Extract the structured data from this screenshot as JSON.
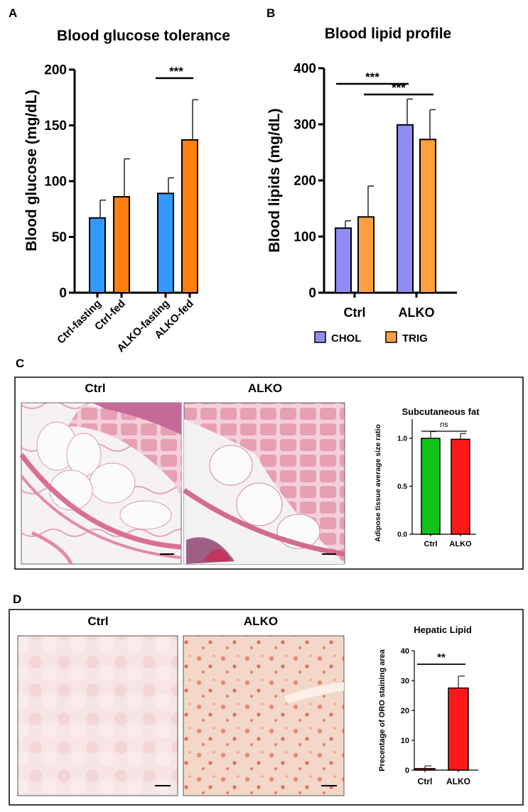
{
  "panels": {
    "A": {
      "letter": "A",
      "chart_data": {
        "type": "bar",
        "title": "Blood glucose tolerance",
        "ylabel": "Blood glucose (mg/dL)",
        "xlabel": "",
        "ylim": [
          0,
          200
        ],
        "yticks": [
          "0",
          "50",
          "100",
          "150",
          "200"
        ],
        "categories": [
          "Ctrl-fasting",
          "Ctrl-fed",
          "ALKO-fasting",
          "ALKO-fed"
        ],
        "values": [
          67,
          86,
          89,
          137
        ],
        "errors": [
          16,
          34,
          14,
          36
        ],
        "bar_colors": [
          "#3399ff",
          "#ff7f0e",
          "#3399ff",
          "#ff7f0e"
        ],
        "significance": [
          {
            "label": "***",
            "from": 2,
            "to": 3
          }
        ]
      }
    },
    "B": {
      "letter": "B",
      "chart_data": {
        "type": "bar",
        "title": "Blood lipid profile",
        "ylabel": "Blood lipids (mg/dL)",
        "xlabel": "",
        "ylim": [
          0,
          400
        ],
        "yticks": [
          "0",
          "100",
          "200",
          "300",
          "400"
        ],
        "categories": [
          "Ctrl",
          "ALKO"
        ],
        "series": [
          {
            "name": "CHOL",
            "color": "#8f8cf6",
            "values": [
              115,
              299
            ],
            "errors": [
              13,
              46
            ]
          },
          {
            "name": "TRIG",
            "color": "#ffa040",
            "values": [
              135,
              273
            ],
            "errors": [
              55,
              53
            ]
          }
        ],
        "legend": "bottom",
        "significance": [
          {
            "label": "***"
          },
          {
            "label": "***"
          }
        ]
      }
    },
    "C": {
      "letter": "C",
      "image_labels": [
        "Ctrl",
        "ALKO"
      ],
      "chart_data": {
        "type": "bar",
        "title": "Subcutaneous fat",
        "ylabel": "Adipose tissue average size ratio",
        "xlabel": "",
        "ylim": [
          0,
          1.2
        ],
        "yticks": [
          "0.0",
          "0.5",
          "1.0"
        ],
        "categories": [
          "Ctrl",
          "ALKO"
        ],
        "values": [
          1.0,
          0.99
        ],
        "errors": [
          0.07,
          0.06
        ],
        "bar_colors": [
          "#11c21b",
          "#ff1a1a"
        ],
        "significance": [
          {
            "label": "ns",
            "from": 0,
            "to": 1
          }
        ]
      }
    },
    "D": {
      "letter": "D",
      "image_labels": [
        "Ctrl",
        "ALKO"
      ],
      "chart_data": {
        "type": "bar",
        "title": "Hepatic Lipid",
        "ylabel": "Precentage of ORO staining area",
        "xlabel": "",
        "ylim": [
          0,
          40
        ],
        "yticks": [
          "0",
          "10",
          "20",
          "30",
          "40"
        ],
        "categories": [
          "Ctrl",
          "ALKO"
        ],
        "values": [
          0.5,
          27.5
        ],
        "errors": [
          0.9,
          4
        ],
        "bar_colors": [
          "#ff1a1a",
          "#ff1a1a"
        ],
        "significance": [
          {
            "label": "**",
            "from": 0,
            "to": 1
          }
        ]
      }
    }
  }
}
